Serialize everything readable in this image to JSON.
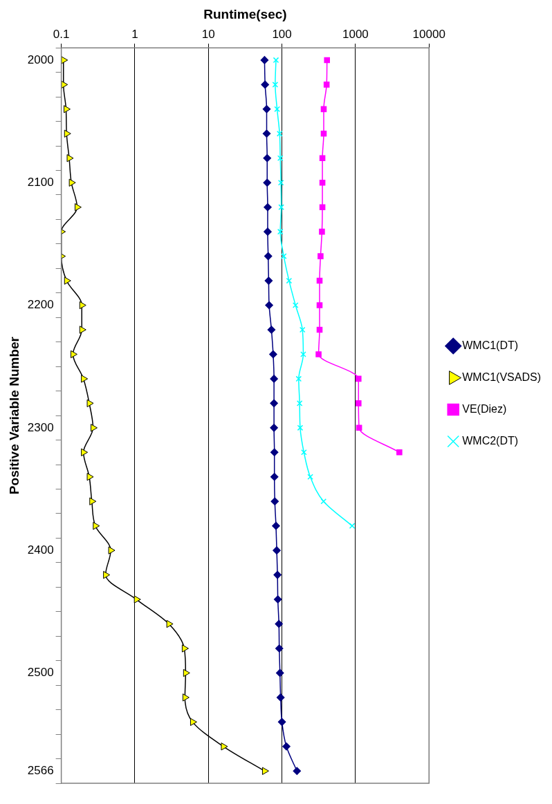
{
  "chart_data": {
    "type": "line",
    "orientation": "horizontal",
    "xlabel": "Runtime(sec)",
    "ylabel": "Positive Variable Number",
    "categories": [
      "2000",
      null,
      null,
      null,
      null,
      "2100",
      null,
      null,
      null,
      null,
      "2200",
      null,
      null,
      null,
      null,
      "2300",
      null,
      null,
      null,
      null,
      "2400",
      null,
      null,
      null,
      null,
      "2500",
      null,
      null,
      null,
      "2566"
    ],
    "series": [
      {
        "name": "WMC1(DT)",
        "color": "#000080",
        "marker": "diamond",
        "values": [
          58,
          59,
          62,
          62,
          63,
          63,
          64,
          64,
          65,
          66,
          67,
          72,
          76,
          78,
          78,
          78,
          79,
          79,
          80,
          83,
          85,
          87,
          88,
          91,
          92,
          94,
          96,
          100,
          115,
          160
        ]
      },
      {
        "name": "WMC1(VSADS)",
        "color": "#ffff00",
        "marker": "triangle",
        "values": [
          0.107,
          0.107,
          0.116,
          0.118,
          0.128,
          0.137,
          0.164,
          0.1,
          0.1,
          0.118,
          0.19,
          0.19,
          0.144,
          0.2,
          0.24,
          0.27,
          0.2,
          0.24,
          0.26,
          0.29,
          0.47,
          0.4,
          1.05,
          2.9,
          4.7,
          4.9,
          4.8,
          6.1,
          16,
          58
        ]
      },
      {
        "name": "VE(Diez)",
        "color": "#ff00ff",
        "marker": "square",
        "values": [
          410,
          405,
          370,
          370,
          355,
          355,
          355,
          350,
          335,
          325,
          325,
          325,
          315,
          1100,
          1100,
          1120,
          3950,
          null,
          null,
          null,
          null,
          null,
          null,
          null,
          null,
          null,
          null,
          null,
          null,
          null
        ]
      },
      {
        "name": "WMC2(DT)",
        "color": "#00ffff",
        "marker": "cross",
        "values": [
          83,
          81,
          86,
          93,
          95,
          97,
          98,
          95,
          106,
          125,
          153,
          190,
          195,
          169,
          174,
          177,
          199,
          243,
          368,
          900,
          null,
          null,
          null,
          null,
          null,
          null,
          null,
          null,
          null,
          null
        ]
      }
    ],
    "log": "x",
    "xlim": [
      0.1,
      10000
    ],
    "xticks": [
      0.1,
      1,
      10,
      100,
      1000,
      10000
    ],
    "grid": "x",
    "legend": "right"
  }
}
